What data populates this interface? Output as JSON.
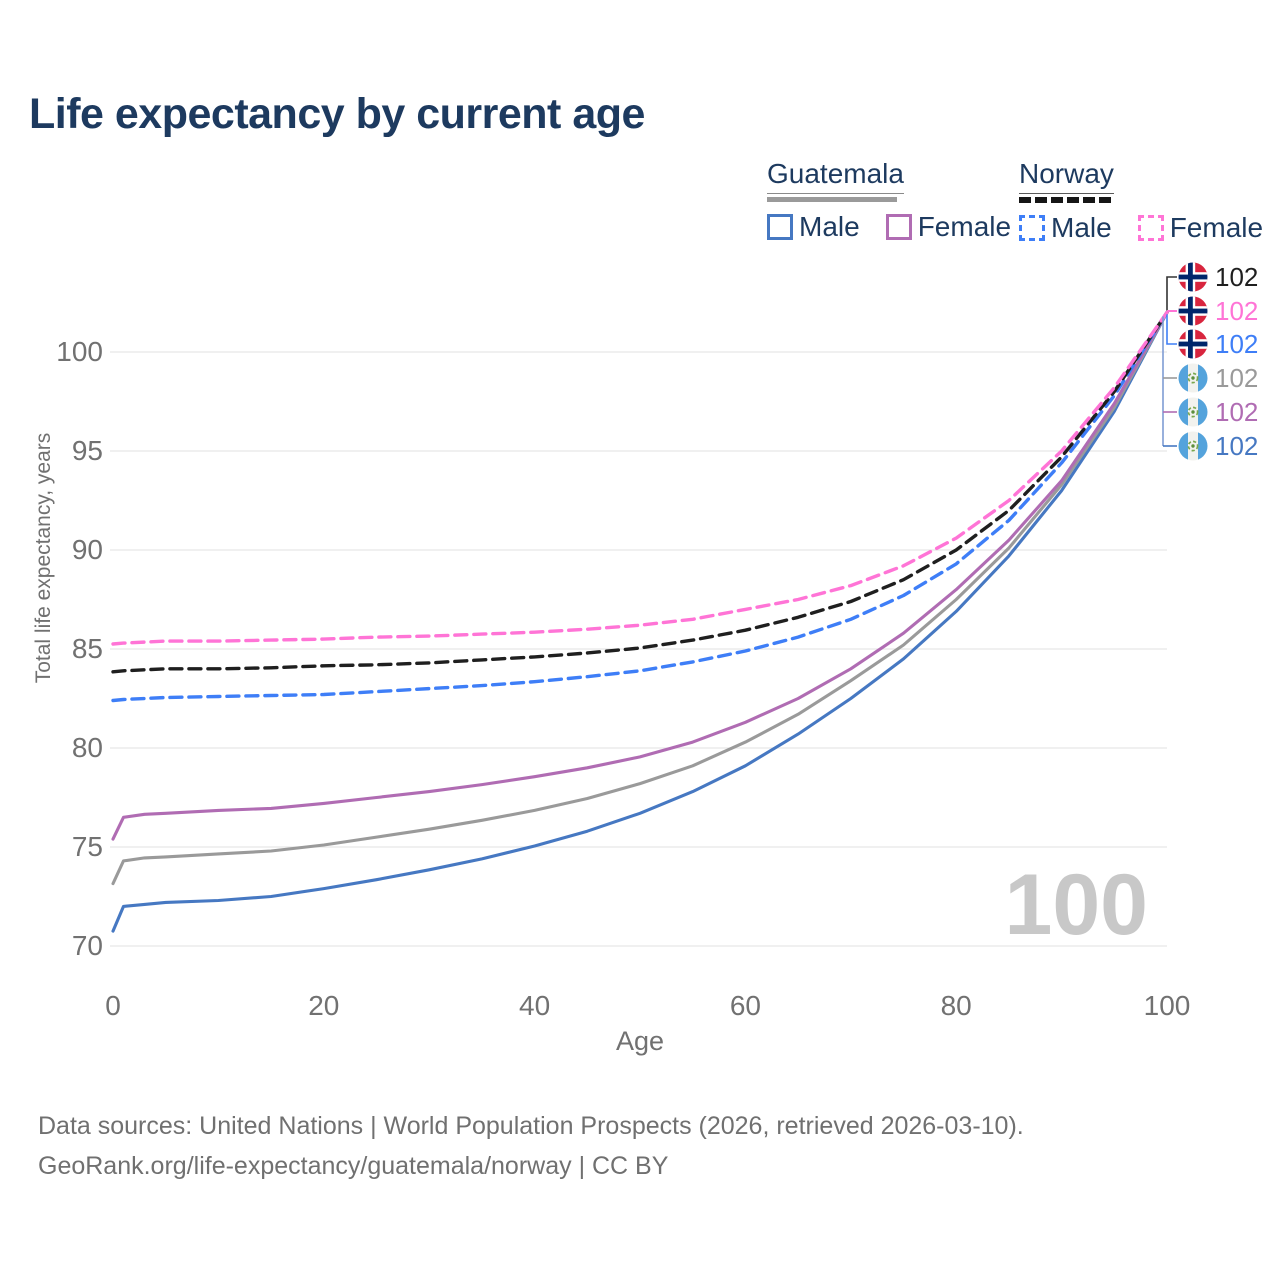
{
  "title": "Life expectancy by current age",
  "legend": {
    "groups": [
      {
        "country": "Guatemala",
        "line_style": "solid",
        "underline_color": "#9a9a9a",
        "items": [
          {
            "label": "Male",
            "color": "#4678c2",
            "dashed": false
          },
          {
            "label": "Female",
            "color": "#b06cb3",
            "dashed": false
          }
        ]
      },
      {
        "country": "Norway",
        "line_style": "dashed",
        "underline_color": "#161616",
        "items": [
          {
            "label": "Male",
            "color": "#3e7ef7",
            "dashed": true
          },
          {
            "label": "Female",
            "color": "#ff74d6",
            "dashed": true
          }
        ]
      }
    ]
  },
  "chart_data": {
    "type": "line",
    "title": "Life expectancy by current age",
    "xlabel": "Age",
    "ylabel": "Total life expectancy, years",
    "xlim": [
      0,
      100
    ],
    "ylim": [
      70,
      103
    ],
    "xticks": [
      0,
      20,
      40,
      60,
      80,
      100
    ],
    "yticks": [
      70,
      75,
      80,
      85,
      90,
      95,
      100
    ],
    "grid": "horizontal",
    "legend_position": "top-right",
    "watermark": "100",
    "x": [
      0,
      1,
      3,
      5,
      10,
      15,
      20,
      25,
      30,
      35,
      40,
      45,
      50,
      55,
      60,
      65,
      70,
      75,
      80,
      85,
      90,
      95,
      100
    ],
    "series": [
      {
        "name": "Guatemala Male",
        "country": "Guatemala",
        "sex": "male",
        "color": "#4678c2",
        "dashed": false,
        "end_label": "102",
        "values": [
          70.75,
          72.0,
          72.1,
          72.2,
          72.3,
          72.5,
          72.9,
          73.35,
          73.85,
          74.4,
          75.05,
          75.8,
          76.7,
          77.8,
          79.1,
          80.7,
          82.5,
          84.5,
          86.9,
          89.7,
          93.0,
          97.0,
          102.0
        ]
      },
      {
        "name": "Guatemala Both sexes",
        "country": "Guatemala",
        "sex": "both",
        "color": "#9a9a9a",
        "dashed": false,
        "end_label": "102",
        "values": [
          73.15,
          74.3,
          74.45,
          74.5,
          74.65,
          74.8,
          75.1,
          75.5,
          75.9,
          76.35,
          76.85,
          77.45,
          78.2,
          79.1,
          80.3,
          81.7,
          83.4,
          85.2,
          87.5,
          90.1,
          93.3,
          97.2,
          102.0
        ]
      },
      {
        "name": "Guatemala Female",
        "country": "Guatemala",
        "sex": "female",
        "color": "#b06cb3",
        "dashed": false,
        "end_label": "102",
        "values": [
          75.4,
          76.5,
          76.65,
          76.7,
          76.85,
          76.95,
          77.2,
          77.5,
          77.8,
          78.15,
          78.55,
          79.0,
          79.55,
          80.3,
          81.3,
          82.5,
          84.0,
          85.8,
          88.0,
          90.5,
          93.5,
          97.4,
          102.0
        ]
      },
      {
        "name": "Norway Male",
        "country": "Norway",
        "sex": "male",
        "color": "#3e7ef7",
        "dashed": true,
        "end_label": "102",
        "values": [
          82.4,
          82.45,
          82.5,
          82.55,
          82.6,
          82.65,
          82.7,
          82.85,
          83.0,
          83.15,
          83.35,
          83.6,
          83.9,
          84.35,
          84.9,
          85.6,
          86.5,
          87.7,
          89.3,
          91.5,
          94.4,
          97.8,
          102.0
        ]
      },
      {
        "name": "Norway Both sexes",
        "country": "Norway",
        "sex": "both",
        "color": "#1f1f1f",
        "dashed": true,
        "end_label": "102",
        "values": [
          83.85,
          83.9,
          83.95,
          84.0,
          84.0,
          84.05,
          84.15,
          84.2,
          84.3,
          84.45,
          84.6,
          84.8,
          85.05,
          85.45,
          85.95,
          86.6,
          87.4,
          88.5,
          90.0,
          92.0,
          94.7,
          98.0,
          102.0
        ]
      },
      {
        "name": "Norway Female",
        "country": "Norway",
        "sex": "female",
        "color": "#ff74d6",
        "dashed": true,
        "end_label": "102",
        "values": [
          85.25,
          85.3,
          85.35,
          85.4,
          85.4,
          85.45,
          85.5,
          85.6,
          85.65,
          85.75,
          85.85,
          86.0,
          86.2,
          86.5,
          87.0,
          87.5,
          88.2,
          89.2,
          90.6,
          92.5,
          95.0,
          98.2,
          102.0
        ]
      }
    ]
  },
  "end_labels": [
    {
      "flag": "norway",
      "value": "102",
      "color": "#1f1f1f"
    },
    {
      "flag": "norway",
      "value": "102",
      "color": "#ff74d6"
    },
    {
      "flag": "norway",
      "value": "102",
      "color": "#3e7ef7"
    },
    {
      "flag": "guatemala",
      "value": "102",
      "color": "#9a9a9a"
    },
    {
      "flag": "guatemala",
      "value": "102",
      "color": "#b06cb3"
    },
    {
      "flag": "guatemala",
      "value": "102",
      "color": "#4678c2"
    }
  ],
  "footer": {
    "line1": "Data sources: United Nations | World Population Prospects (2026, retrieved 2026-03-10).",
    "line2": "GeoRank.org/life-expectancy/guatemala/norway | CC BY"
  }
}
